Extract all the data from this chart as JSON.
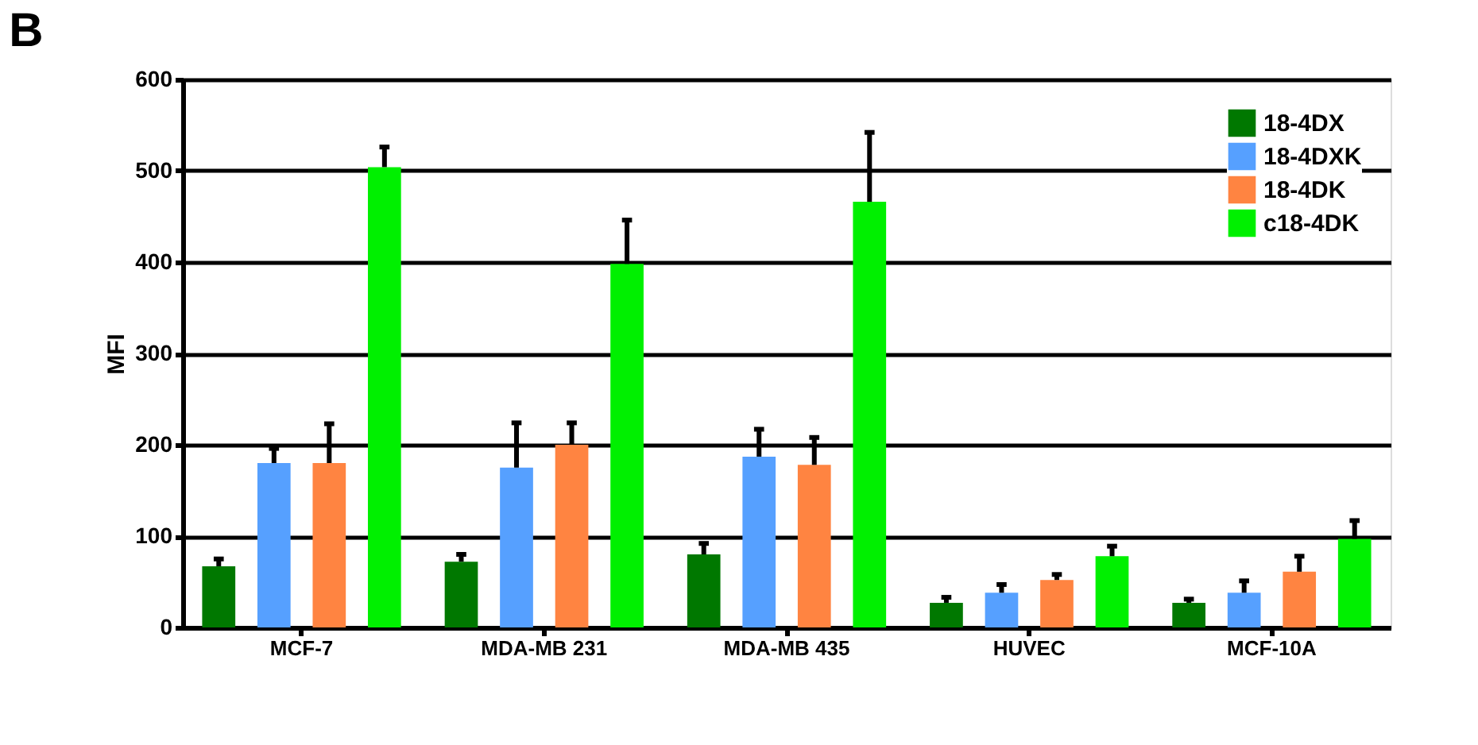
{
  "chart_data": {
    "type": "bar",
    "title": "B",
    "ylabel": "MFI",
    "categories": [
      "MCF-7",
      "MDA-MB 231",
      "MDA-MB 435",
      "HUVEC",
      "MCF-10A"
    ],
    "series": [
      {
        "name": "18-4DX",
        "color": "#007800",
        "values": [
          67,
          72,
          80,
          27,
          27
        ],
        "errors": [
          [
            67,
            75
          ],
          [
            72,
            80
          ],
          [
            80,
            92
          ],
          [
            27,
            33
          ],
          [
            27,
            31
          ]
        ]
      },
      {
        "name": "18-4DXK",
        "color": "#56a0ff",
        "values": [
          180,
          175,
          187,
          38,
          38
        ],
        "errors": [
          [
            180,
            196
          ],
          [
            175,
            224
          ],
          [
            187,
            217
          ],
          [
            38,
            47
          ],
          [
            38,
            51
          ]
        ]
      },
      {
        "name": "18-4DK",
        "color": "#ff8441",
        "values": [
          180,
          200,
          178,
          52,
          61
        ],
        "errors": [
          [
            180,
            223
          ],
          [
            200,
            224
          ],
          [
            178,
            208
          ],
          [
            52,
            58
          ],
          [
            61,
            78
          ]
        ]
      },
      {
        "name": "c18-4DK",
        "color": "#00f000",
        "values": [
          504,
          398,
          466,
          78,
          97
        ],
        "errors": [
          [
            504,
            526
          ],
          [
            398,
            446
          ],
          [
            466,
            542
          ],
          [
            78,
            89
          ],
          [
            97,
            117
          ]
        ]
      }
    ],
    "ylim": [
      0,
      600
    ],
    "yticks": [
      0,
      100,
      200,
      300,
      400,
      500,
      600
    ],
    "grid": "y",
    "legend": "top right"
  }
}
